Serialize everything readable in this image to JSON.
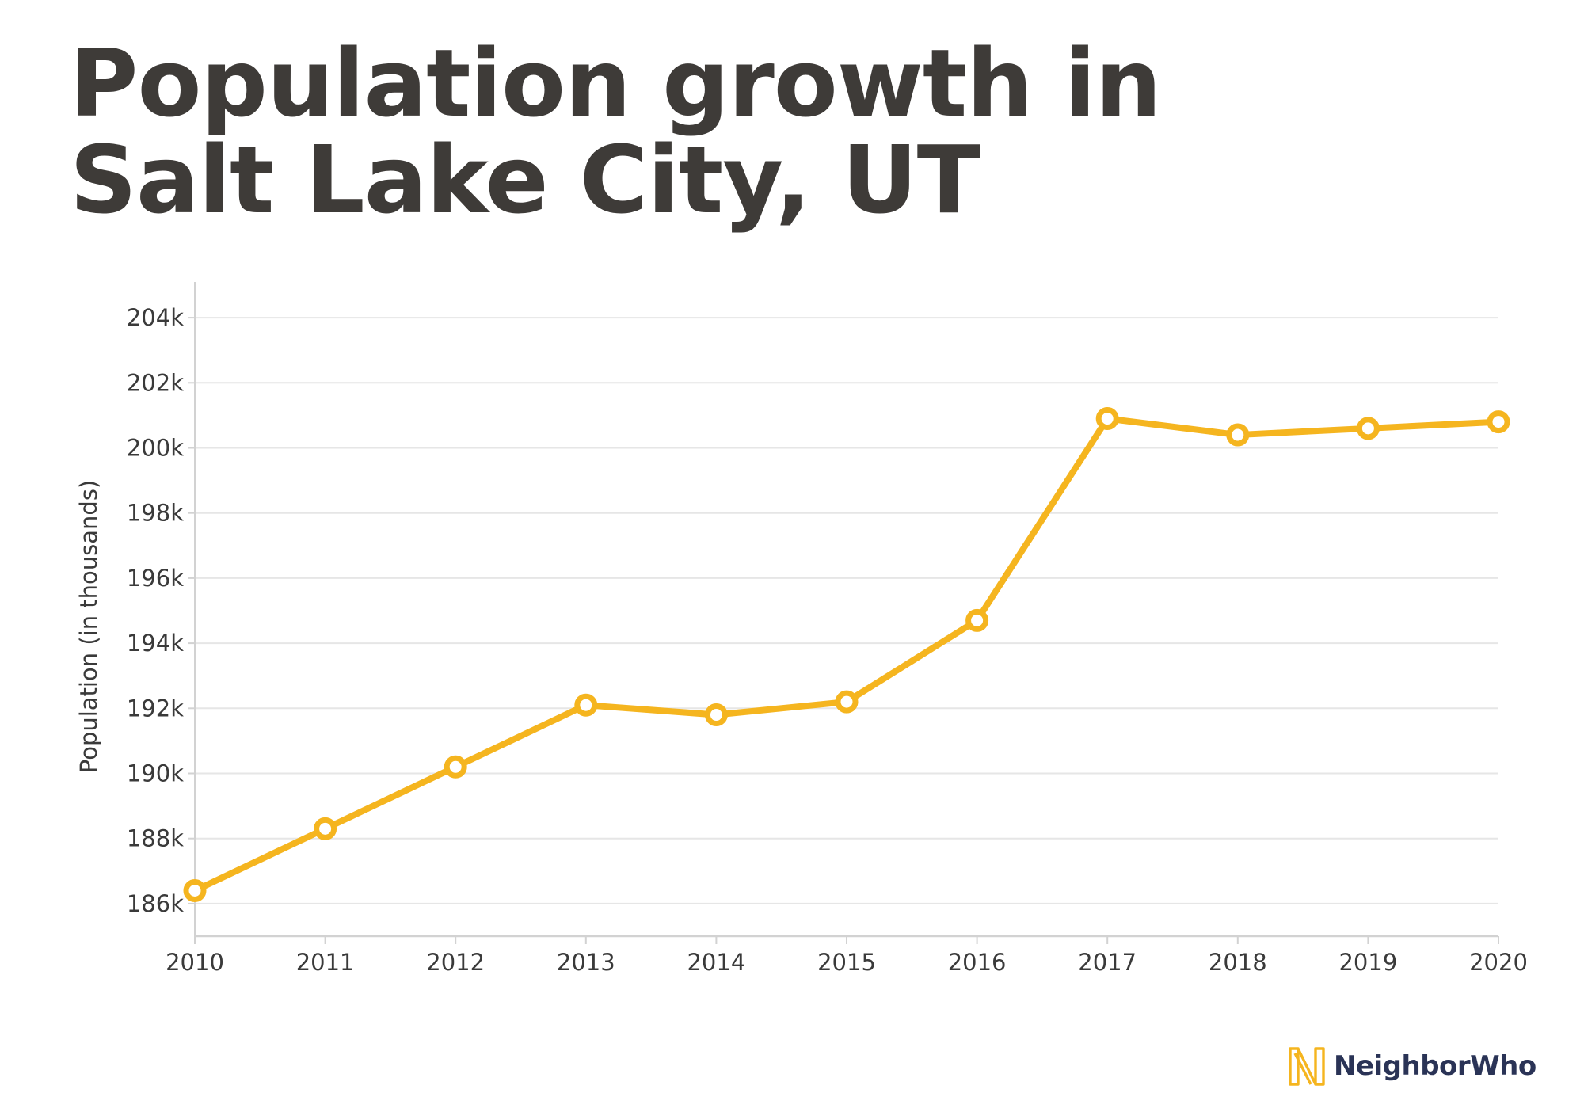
{
  "title": {
    "line1": "Population growth in",
    "line2": "Salt Lake City, UT"
  },
  "brand": {
    "name": "NeighborWho"
  },
  "colors": {
    "title": "#3e3b38",
    "line": "#f5b51f",
    "grid": "#e6e6e6",
    "axis": "#d2d2d2",
    "tick_text": "#3a3a3a",
    "brand_text": "#2a3356",
    "brand_mark": "#f5b51f"
  },
  "chart_data": {
    "type": "line",
    "title": "Population growth in Salt Lake City, UT",
    "xlabel": "",
    "ylabel": "Population (in thousands)",
    "x": [
      "2010",
      "2011",
      "2012",
      "2013",
      "2014",
      "2015",
      "2016",
      "2017",
      "2018",
      "2019",
      "2020"
    ],
    "series": [
      {
        "values": [
          186400,
          188300,
          190200,
          192100,
          191800,
          192200,
          194700,
          200900,
          200400,
          200600,
          200800
        ]
      }
    ],
    "ylim": [
      185000,
      205000
    ],
    "yticks": [
      186000,
      188000,
      190000,
      192000,
      194000,
      196000,
      198000,
      200000,
      202000,
      204000
    ],
    "ytick_labels": [
      "186k",
      "188k",
      "190k",
      "192k",
      "194k",
      "196k",
      "198k",
      "200k",
      "202k",
      "204k"
    ],
    "grid": true,
    "legend": "none",
    "markers": "hollow-circle"
  }
}
